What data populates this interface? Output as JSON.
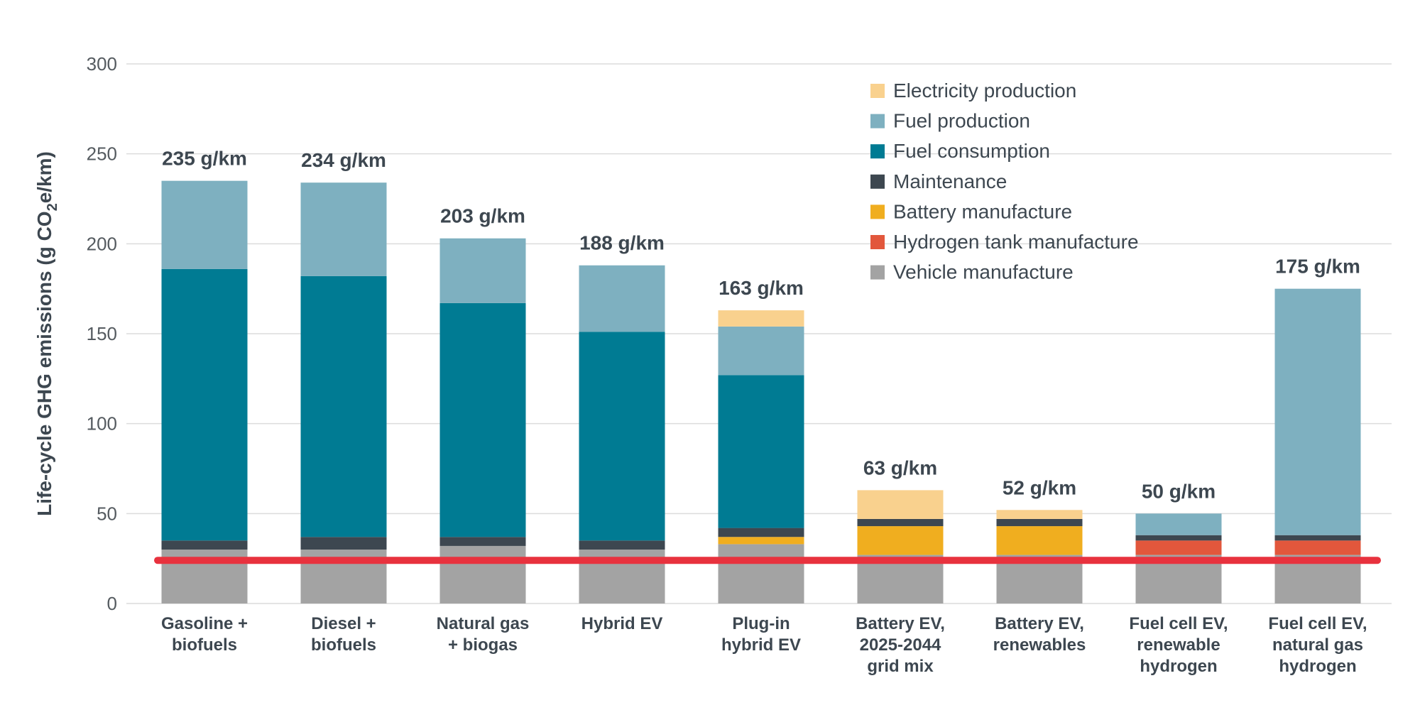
{
  "colors": {
    "Electricity production": "#f9d18e",
    "Fuel production": "#7eb0c0",
    "Fuel consumption": "#007b93",
    "Maintenance": "#3d4750",
    "Battery manufacture": "#f0ae1f",
    "Hydrogen tank manufacture": "#e2573c",
    "Vehicle manufacture": "#a3a3a3",
    "grid": "#dcdcdc",
    "reference_line": "#e8323e"
  },
  "chart_data": {
    "type": "bar",
    "stacked": true,
    "ylabel_pre": "Life-cycle GHG emissions (g CO",
    "ylabel_sub": "2",
    "ylabel_post": "e/km)",
    "ylim": [
      0,
      300
    ],
    "yticks": [
      0,
      50,
      100,
      150,
      200,
      250,
      300
    ],
    "grid": true,
    "legend_position": "top-right",
    "categories": [
      [
        "Gasoline +",
        "biofuels"
      ],
      [
        "Diesel +",
        "biofuels"
      ],
      [
        "Natural gas",
        "+ biogas"
      ],
      [
        "Hybrid EV"
      ],
      [
        "Plug-in",
        "hybrid EV"
      ],
      [
        "Battery EV,",
        "2025-2044",
        "grid mix"
      ],
      [
        "Battery EV,",
        "renewables"
      ],
      [
        "Fuel cell EV,",
        "renewable",
        "hydrogen"
      ],
      [
        "Fuel cell EV,",
        "natural gas",
        "hydrogen"
      ]
    ],
    "totals": [
      "235 g/km",
      "234 g/km",
      "203 g/km",
      "188 g/km",
      "163 g/km",
      "63 g/km",
      "52 g/km",
      "50 g/km",
      "175 g/km"
    ],
    "series": [
      {
        "name": "Vehicle manufacture",
        "values": [
          30,
          30,
          32,
          30,
          33,
          27,
          27,
          27,
          27
        ]
      },
      {
        "name": "Hydrogen tank manufacture",
        "values": [
          0,
          0,
          0,
          0,
          0,
          0,
          0,
          8,
          8
        ]
      },
      {
        "name": "Battery manufacture",
        "values": [
          0,
          0,
          0,
          0,
          4,
          16,
          16,
          0,
          0
        ]
      },
      {
        "name": "Maintenance",
        "values": [
          5,
          7,
          5,
          5,
          5,
          4,
          4,
          3,
          3
        ]
      },
      {
        "name": "Fuel consumption",
        "values": [
          151,
          145,
          130,
          116,
          85,
          0,
          0,
          0,
          0
        ]
      },
      {
        "name": "Fuel production",
        "values": [
          49,
          52,
          36,
          37,
          27,
          0,
          0,
          12,
          137
        ]
      },
      {
        "name": "Electricity production",
        "values": [
          0,
          0,
          0,
          0,
          9,
          16,
          5,
          0,
          0
        ]
      }
    ],
    "legend_order": [
      "Electricity production",
      "Fuel production",
      "Fuel consumption",
      "Maintenance",
      "Battery manufacture",
      "Hydrogen tank manufacture",
      "Vehicle manufacture"
    ],
    "reference_line_value": 24
  }
}
